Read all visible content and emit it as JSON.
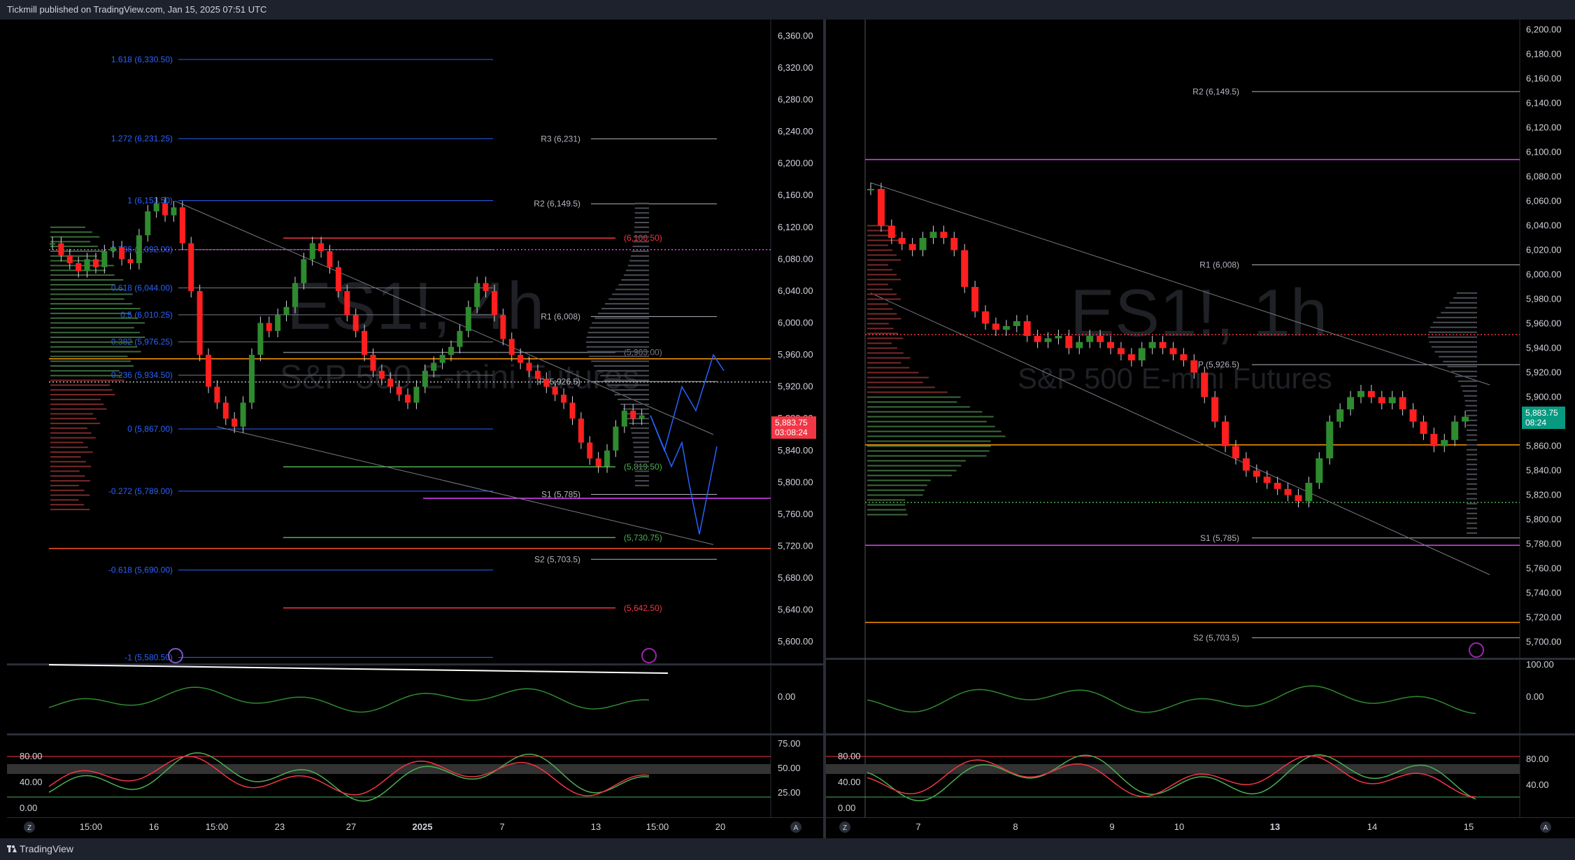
{
  "header": {
    "title": "Tickmill published on TradingView.com, Jan 15, 2025 07:51 UTC"
  },
  "footer": {
    "brand": "TradingView"
  },
  "colors": {
    "bg": "#000000",
    "axis_text": "#d1d4dc",
    "grid": "#1a1a1a",
    "bull": "#2e8b2e",
    "bear": "#ff1f1f",
    "fib": "#2962ff",
    "pivot": "#b2b5be",
    "magenta": "#e040fb",
    "orange": "#ff9800",
    "green_line": "#4caf50",
    "red_line": "#f23645",
    "price_tag": "#f23645",
    "price_tag_right": "#089981"
  },
  "left_chart": {
    "watermark_symbol": "ES1!, 4h",
    "watermark_name": "S&P 500 E-mini Futures",
    "price_label": "5,883.75",
    "countdown": "03:08:24",
    "chart_data": {
      "type": "candlestick",
      "ylim": [
        5580,
        6370
      ],
      "y_ticks": [
        "6,360.00",
        "6,320.00",
        "6,280.00",
        "6,240.00",
        "6,200.00",
        "6,160.00",
        "6,120.00",
        "6,080.00",
        "6,040.00",
        "6,000.00",
        "5,960.00",
        "5,920.00",
        "5,880.00",
        "5,840.00",
        "5,800.00",
        "5,760.00",
        "5,720.00",
        "5,680.00",
        "5,640.00",
        "5,600.00"
      ],
      "y_tick_values": [
        6360,
        6320,
        6280,
        6240,
        6200,
        6160,
        6120,
        6080,
        6040,
        6000,
        5960,
        5920,
        5880,
        5840,
        5800,
        5760,
        5720,
        5680,
        5640,
        5600
      ],
      "x_ticks": [
        "15:00",
        "16",
        "15:00",
        "23",
        "27",
        "2025",
        "7",
        "13",
        "15:00",
        "20"
      ],
      "fib_levels": [
        {
          "label": "1.618 (6,330.50)",
          "value": 6330.5
        },
        {
          "label": "1.272 (6,231.25)",
          "value": 6231.25
        },
        {
          "label": "1 (6,153.50)",
          "value": 6153.5
        },
        {
          "label": "0.786 (6,092.00)",
          "value": 6092
        },
        {
          "label": "0.618 (6,044.00)",
          "value": 6044
        },
        {
          "label": "0.5 (6,010.25)",
          "value": 6010.25
        },
        {
          "label": "0.382 (5,976.25)",
          "value": 5976.25
        },
        {
          "label": "0.236 (5,934.50)",
          "value": 5934.5
        },
        {
          "label": "0 (5,867.00)",
          "value": 5867
        },
        {
          "label": "-0.272 (5,789.00)",
          "value": 5789
        },
        {
          "label": "-0.618 (5,690.00)",
          "value": 5690
        },
        {
          "label": "-1 (5,580.50)",
          "value": 5580.5
        }
      ],
      "pivot_levels": [
        {
          "label": "R3 (6,231)",
          "value": 6231
        },
        {
          "label": "R2 (6,149.5)",
          "value": 6149.5
        },
        {
          "label": "R1 (6,008)",
          "value": 6008
        },
        {
          "label": "P (5,926.5)",
          "value": 5926.5
        },
        {
          "label": "S1 (5,785)",
          "value": 5785
        },
        {
          "label": "S2 (5,703.5)",
          "value": 5703.5
        }
      ],
      "extra_levels": [
        {
          "label": "(6,106.50)",
          "value": 6106.5
        },
        {
          "label": "(5,963.00)",
          "value": 5963
        },
        {
          "label": "(5,819.50)",
          "value": 5819.5
        },
        {
          "label": "(5,730.75)",
          "value": 5730.75
        },
        {
          "label": "(5,642.50)",
          "value": 5642.5
        }
      ],
      "closes": [
        6100,
        6085,
        6075,
        6065,
        6080,
        6070,
        6090,
        6095,
        6080,
        6075,
        6110,
        6140,
        6150,
        6135,
        6145,
        6100,
        6040,
        5960,
        5920,
        5900,
        5880,
        5870,
        5900,
        5960,
        6000,
        5990,
        6010,
        6020,
        6050,
        6080,
        6100,
        6090,
        6070,
        6040,
        6010,
        5990,
        5960,
        5940,
        5930,
        5920,
        5910,
        5900,
        5920,
        5940,
        5950,
        5960,
        5970,
        5990,
        6020,
        6050,
        6040,
        6010,
        5980,
        5960,
        5950,
        5940,
        5930,
        5920,
        5910,
        5900,
        5880,
        5850,
        5830,
        5820,
        5840,
        5870,
        5890,
        5880,
        5884
      ]
    }
  },
  "right_chart": {
    "watermark_symbol": "ES1!, 1h",
    "watermark_name": "S&P 500 E-mini Futures",
    "price_label": "5,883.75",
    "countdown": "08:24",
    "chart_data": {
      "type": "candlestick",
      "ylim": [
        5690,
        6210
      ],
      "y_ticks": [
        "6,200.00",
        "6,180.00",
        "6,160.00",
        "6,140.00",
        "6,120.00",
        "6,100.00",
        "6,080.00",
        "6,060.00",
        "6,040.00",
        "6,020.00",
        "6,000.00",
        "5,980.00",
        "5,960.00",
        "5,940.00",
        "5,920.00",
        "5,900.00",
        "5,880.00",
        "5,860.00",
        "5,840.00",
        "5,820.00",
        "5,800.00",
        "5,780.00",
        "5,760.00",
        "5,740.00",
        "5,720.00",
        "5,700.00"
      ],
      "y_tick_values": [
        6200,
        6180,
        6160,
        6140,
        6120,
        6100,
        6080,
        6060,
        6040,
        6020,
        6000,
        5980,
        5960,
        5940,
        5920,
        5900,
        5880,
        5860,
        5840,
        5820,
        5800,
        5780,
        5760,
        5740,
        5720,
        5700
      ],
      "x_ticks": [
        "7",
        "8",
        "9",
        "10",
        "13",
        "14",
        "15"
      ],
      "pivot_levels": [
        {
          "label": "R2 (6,149.5)",
          "value": 6149.5
        },
        {
          "label": "R1 (6,008)",
          "value": 6008
        },
        {
          "label": "P (5,926.5)",
          "value": 5926.5
        },
        {
          "label": "S1 (5,785)",
          "value": 5785
        },
        {
          "label": "S2 (5,703.5)",
          "value": 5703.5
        }
      ],
      "closes": [
        6070,
        6040,
        6030,
        6025,
        6020,
        6030,
        6035,
        6030,
        6020,
        5990,
        5970,
        5960,
        5955,
        5958,
        5962,
        5950,
        5945,
        5948,
        5950,
        5940,
        5945,
        5950,
        5945,
        5940,
        5935,
        5930,
        5940,
        5945,
        5940,
        5935,
        5930,
        5920,
        5900,
        5880,
        5860,
        5850,
        5840,
        5835,
        5830,
        5825,
        5820,
        5815,
        5830,
        5850,
        5880,
        5890,
        5900,
        5905,
        5900,
        5895,
        5900,
        5890,
        5880,
        5870,
        5860,
        5865,
        5880,
        5884
      ]
    }
  },
  "left_osc1": {
    "zero_label": "0.00"
  },
  "left_osc2": {
    "ticks_left": [
      "80.00",
      "40.00",
      "0.00"
    ],
    "ticks_right": [
      "75.00",
      "50.00",
      "25.00"
    ]
  },
  "right_osc1": {
    "ticks": [
      "100.00",
      "0.00"
    ]
  },
  "right_osc2": {
    "ticks": [
      "80.00",
      "40.00",
      "0.00"
    ],
    "ticks_right": [
      "80.00",
      "40.00"
    ]
  },
  "corner_labels": {
    "z": "Z",
    "a": "A"
  }
}
